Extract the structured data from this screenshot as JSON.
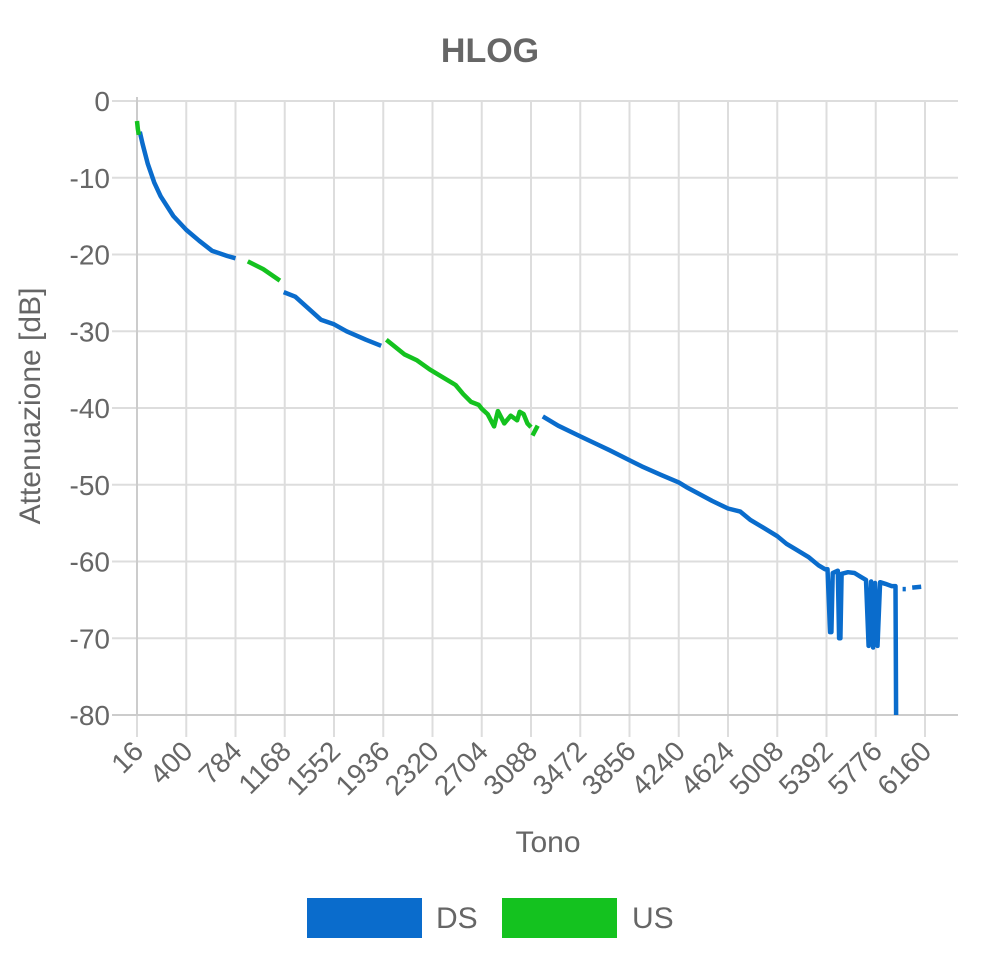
{
  "chart_data": {
    "type": "line",
    "title": "HLOG",
    "xlabel": "Tono",
    "ylabel": "Attenuazione [dB]",
    "xlim": [
      16,
      6160
    ],
    "ylim": [
      -80,
      0
    ],
    "x_ticks": [
      "16",
      "400",
      "784",
      "1168",
      "1552",
      "1936",
      "2320",
      "2704",
      "3088",
      "3472",
      "3856",
      "4240",
      "4624",
      "5008",
      "5392",
      "5776",
      "6160"
    ],
    "y_ticks": [
      "0",
      "-10",
      "-20",
      "-30",
      "-40",
      "-50",
      "-60",
      "-70",
      "-80"
    ],
    "grid": true,
    "legend_position": "bottom",
    "colors": {
      "DS": "#0a6ccc",
      "US": "#14c21f",
      "grid": "#dddddd",
      "text": "#666666"
    },
    "series": [
      {
        "name": "DS",
        "segments": [
          [
            [
              38,
              -4.0
            ],
            [
              60,
              -5.6
            ],
            [
              100,
              -8.2
            ],
            [
              150,
              -10.6
            ],
            [
              200,
              -12.4
            ],
            [
              300,
              -15.0
            ],
            [
              400,
              -16.8
            ],
            [
              500,
              -18.2
            ],
            [
              600,
              -19.5
            ],
            [
              720,
              -20.2
            ],
            [
              784,
              -20.5
            ]
          ],
          [
            [
              1160,
              -24.9
            ],
            [
              1250,
              -25.5
            ],
            [
              1350,
              -27.0
            ],
            [
              1450,
              -28.5
            ],
            [
              1552,
              -29.1
            ],
            [
              1650,
              -30.0
            ],
            [
              1800,
              -31.1
            ],
            [
              1920,
              -31.9
            ]
          ],
          [
            [
              3180,
              -41.1
            ],
            [
              3300,
              -42.3
            ],
            [
              3472,
              -43.7
            ],
            [
              3600,
              -44.7
            ],
            [
              3700,
              -45.5
            ],
            [
              3856,
              -46.8
            ],
            [
              3950,
              -47.6
            ],
            [
              4100,
              -48.7
            ],
            [
              4240,
              -49.7
            ],
            [
              4300,
              -50.3
            ],
            [
              4400,
              -51.2
            ],
            [
              4500,
              -52.1
            ],
            [
              4624,
              -53.1
            ],
            [
              4720,
              -53.5
            ],
            [
              4800,
              -54.6
            ],
            [
              4900,
              -55.6
            ],
            [
              5008,
              -56.7
            ],
            [
              5080,
              -57.7
            ],
            [
              5150,
              -58.4
            ],
            [
              5250,
              -59.4
            ],
            [
              5330,
              -60.5
            ],
            [
              5380,
              -61.0
            ],
            [
              5400,
              -61.0
            ],
            [
              5420,
              -69.2
            ],
            [
              5430,
              -69.2
            ],
            [
              5440,
              -61.5
            ],
            [
              5480,
              -61.2
            ],
            [
              5490,
              -70.0
            ],
            [
              5500,
              -70.0
            ],
            [
              5510,
              -61.6
            ],
            [
              5560,
              -61.4
            ],
            [
              5610,
              -61.5
            ],
            [
              5660,
              -62.0
            ],
            [
              5700,
              -62.4
            ],
            [
              5720,
              -71.0
            ],
            [
              5740,
              -62.6
            ],
            [
              5755,
              -71.2
            ],
            [
              5770,
              -62.8
            ],
            [
              5790,
              -71.0
            ],
            [
              5810,
              -62.7
            ],
            [
              5850,
              -62.9
            ],
            [
              5900,
              -63.2
            ],
            [
              5930,
              -63.2
            ],
            [
              5935,
              -80.0
            ]
          ],
          [
            [
              5985,
              -63.6
            ],
            [
              6010,
              -63.6
            ]
          ],
          [
            [
              6060,
              -63.4
            ],
            [
              6130,
              -63.3
            ]
          ]
        ]
      },
      {
        "name": "US",
        "segments": [
          [
            [
              16,
              -2.6
            ],
            [
              22,
              -3.6
            ],
            [
              30,
              -4.4
            ]
          ],
          [
            [
              880,
              -20.9
            ],
            [
              1000,
              -21.9
            ],
            [
              1130,
              -23.4
            ]
          ],
          [
            [
              1960,
              -31.1
            ],
            [
              2100,
              -33.0
            ],
            [
              2200,
              -33.8
            ],
            [
              2300,
              -35.0
            ],
            [
              2400,
              -36.0
            ],
            [
              2500,
              -37.0
            ],
            [
              2560,
              -38.2
            ],
            [
              2620,
              -39.2
            ],
            [
              2680,
              -39.6
            ],
            [
              2704,
              -40.1
            ],
            [
              2750,
              -40.8
            ],
            [
              2800,
              -42.4
            ],
            [
              2830,
              -40.4
            ],
            [
              2880,
              -42.0
            ],
            [
              2930,
              -41.0
            ],
            [
              2980,
              -41.6
            ],
            [
              3000,
              -40.5
            ],
            [
              3030,
              -40.8
            ],
            [
              3060,
              -42.0
            ],
            [
              3088,
              -42.5
            ]
          ],
          [
            [
              3100,
              -43.6
            ],
            [
              3140,
              -42.3
            ]
          ]
        ]
      }
    ]
  }
}
